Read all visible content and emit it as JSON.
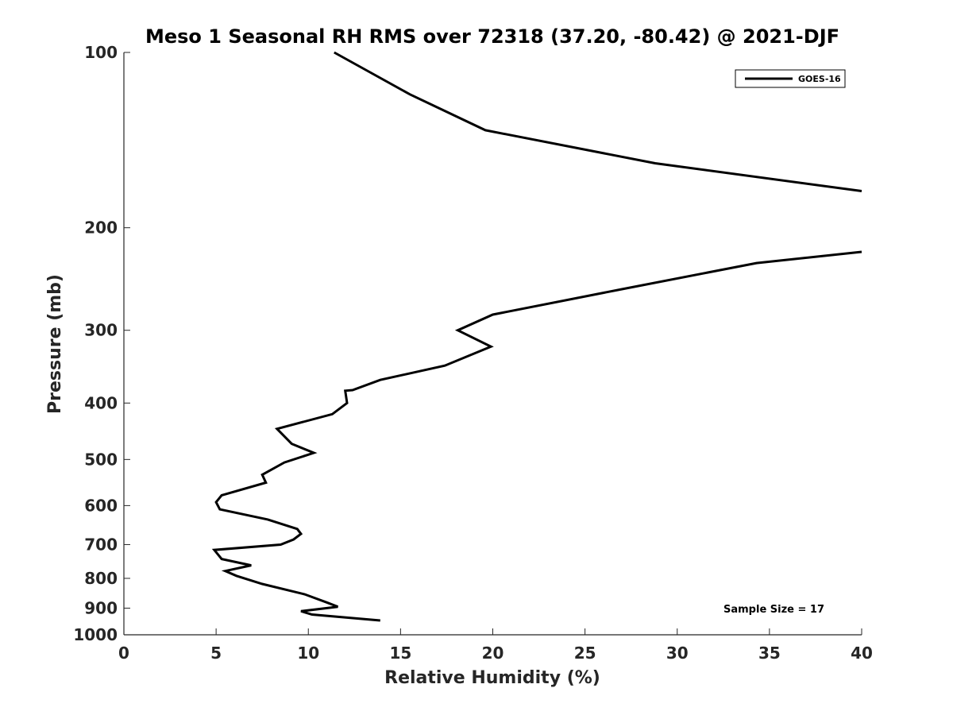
{
  "chart_data": {
    "type": "line",
    "title": "Meso 1 Seasonal RH RMS over 72318 (37.20, -80.42) @ 2021-DJF",
    "xlabel": "Relative Humidity (%)",
    "ylabel": "Pressure (mb)",
    "xlim": [
      0,
      40
    ],
    "ylim": [
      100,
      1000
    ],
    "y_scale": "log",
    "y_reversed": true,
    "grid": false,
    "legend_position": "top-right",
    "xticks": [
      0,
      5,
      10,
      15,
      20,
      25,
      30,
      35,
      40
    ],
    "xtick_labels": [
      "0",
      "5",
      "10",
      "15",
      "20",
      "25",
      "30",
      "35",
      "40"
    ],
    "yticks": [
      100,
      200,
      300,
      400,
      500,
      600,
      700,
      800,
      900,
      1000
    ],
    "ytick_labels": [
      "100",
      "200",
      "300",
      "400",
      "500",
      "600",
      "700",
      "800",
      "900",
      "1000"
    ],
    "annotation": "Sample Size = 17",
    "series": [
      {
        "name": "GOES-16",
        "color": "#000000",
        "segments": [
          [
            [
              11.4,
              100
            ],
            [
              15.5,
              118
            ],
            [
              19.6,
              136
            ],
            [
              28.8,
              155
            ],
            [
              40,
              173
            ]
          ],
          [
            [
              40,
              220
            ],
            [
              34.3,
              230
            ],
            [
              27.0,
              255
            ],
            [
              20.0,
              282
            ],
            [
              18.1,
              300
            ],
            [
              19.9,
              320
            ],
            [
              17.4,
              345
            ],
            [
              13.9,
              365
            ],
            [
              12.4,
              380
            ],
            [
              12.0,
              381
            ],
            [
              12.1,
              400
            ],
            [
              11.3,
              418
            ],
            [
              8.3,
              443
            ],
            [
              9.1,
              470
            ],
            [
              10.3,
              487
            ],
            [
              8.7,
              506
            ],
            [
              7.5,
              531
            ],
            [
              7.7,
              548
            ],
            [
              5.3,
              576
            ],
            [
              5.0,
              592
            ],
            [
              5.2,
              609
            ],
            [
              7.8,
              634
            ],
            [
              9.4,
              658
            ],
            [
              9.6,
              671
            ],
            [
              9.2,
              686
            ],
            [
              8.5,
              700
            ],
            [
              4.9,
              715
            ],
            [
              5.3,
              741
            ],
            [
              6.9,
              760
            ],
            [
              5.5,
              777
            ],
            [
              6.1,
              792
            ],
            [
              7.5,
              818
            ],
            [
              9.8,
              852
            ],
            [
              11.0,
              880
            ],
            [
              11.6,
              895
            ],
            [
              9.6,
              911
            ],
            [
              10.2,
              923
            ],
            [
              13.9,
              945
            ]
          ]
        ]
      }
    ]
  }
}
